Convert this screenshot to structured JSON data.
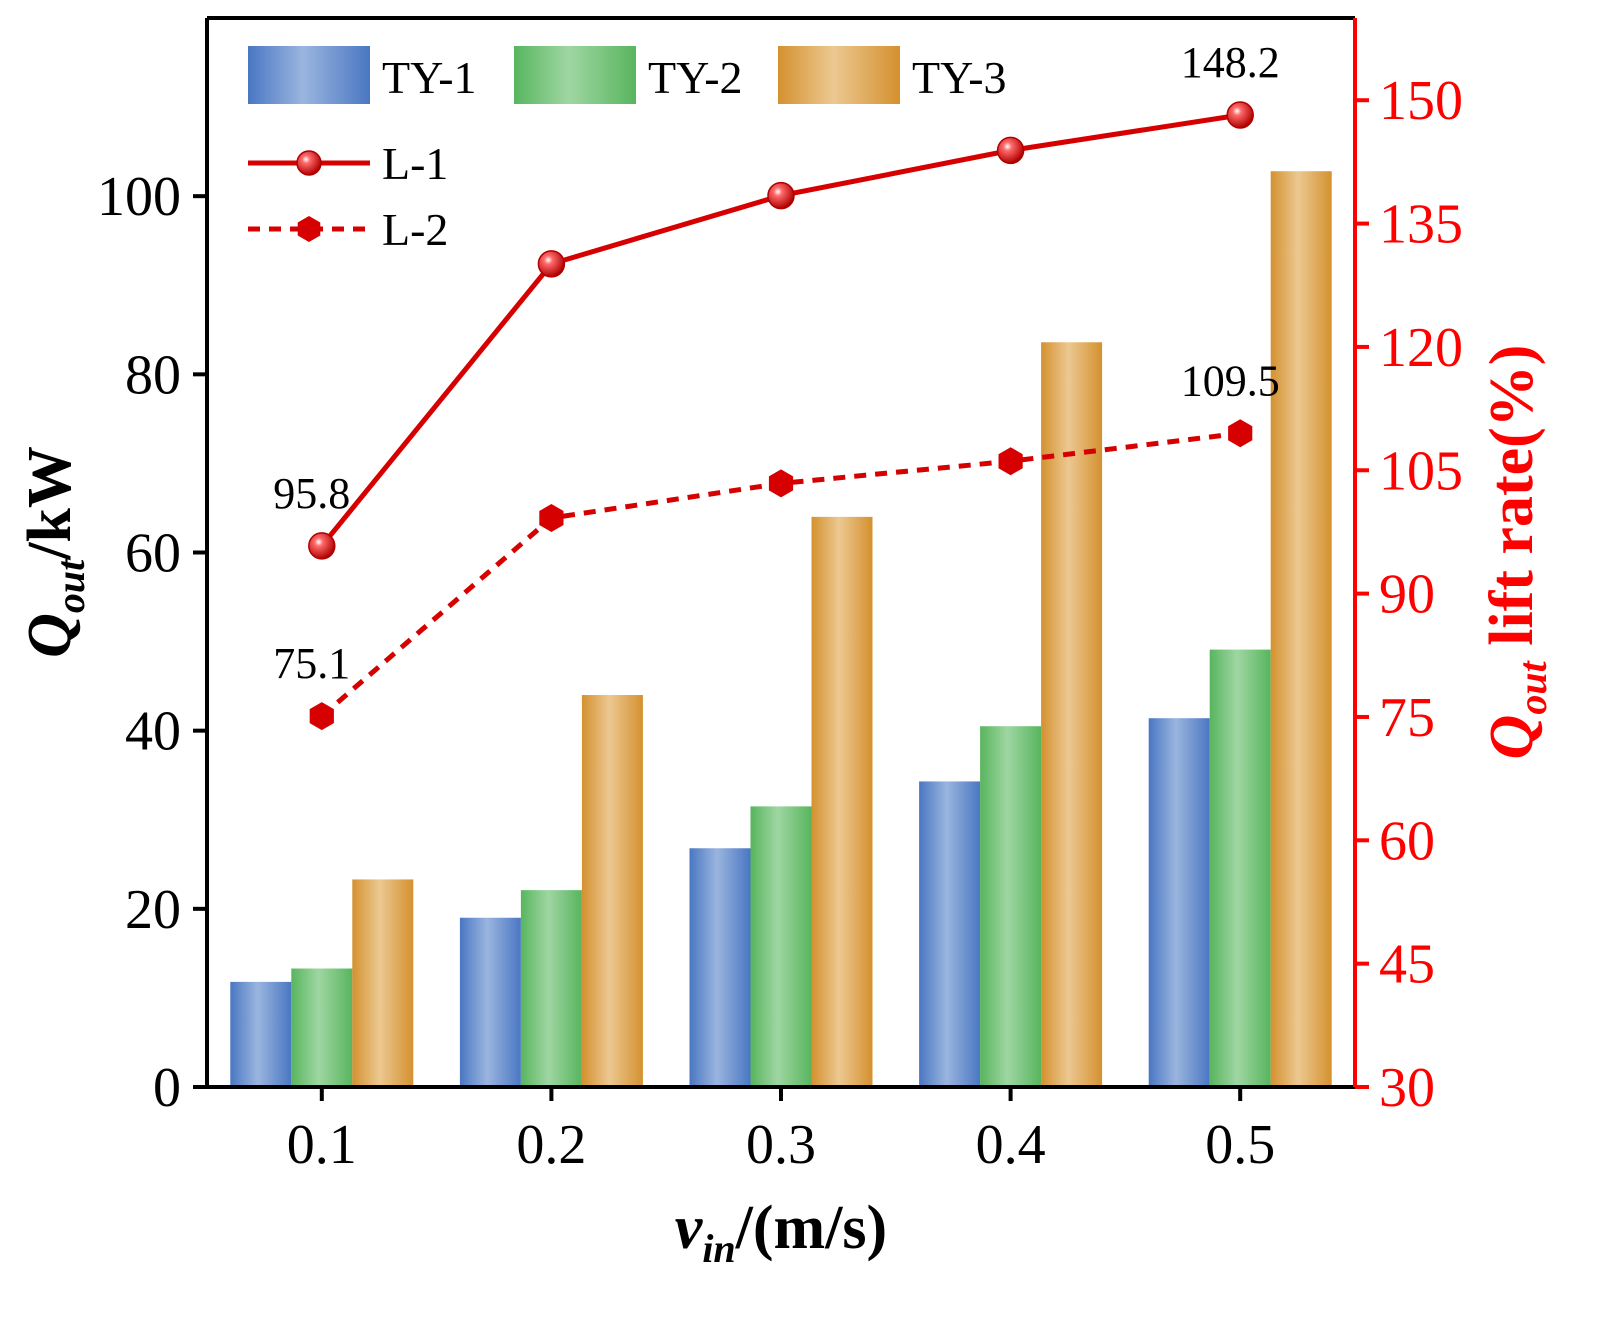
{
  "chart_data": {
    "type": "bar",
    "x": {
      "categories": [
        "0.1",
        "0.2",
        "0.3",
        "0.4",
        "0.5"
      ],
      "label_main": "v",
      "label_sub": "in",
      "label_rest": "/(m/s)"
    },
    "y_left": {
      "label_main": "Q",
      "label_sub": "out",
      "label_rest": "/kW",
      "ylim": [
        0,
        120
      ],
      "ticks": [
        0,
        20,
        40,
        60,
        80,
        100
      ]
    },
    "y_right": {
      "label_main": "Q",
      "label_sub": "out",
      "label_rest": " lift rate(%)",
      "ylim": [
        30,
        160
      ],
      "ticks": [
        30,
        45,
        60,
        75,
        90,
        105,
        120,
        135,
        150
      ],
      "color": "#ff0000"
    },
    "bar_series": [
      {
        "name": "TY-1",
        "values": [
          11.8,
          19.0,
          26.8,
          34.3,
          41.4
        ],
        "color_dark": "#4a77c3",
        "color_light": "#9ab5de"
      },
      {
        "name": "TY-2",
        "values": [
          13.3,
          22.1,
          31.5,
          40.5,
          49.1
        ],
        "color_dark": "#58b55e",
        "color_light": "#9fd6a2"
      },
      {
        "name": "TY-3",
        "values": [
          23.3,
          44.0,
          64.0,
          83.6,
          102.8
        ],
        "color_dark": "#d4912f",
        "color_light": "#ecc891"
      }
    ],
    "line_series": [
      {
        "name": "L-1",
        "axis": "right",
        "values": [
          95.8,
          130.1,
          138.4,
          143.9,
          148.2
        ],
        "style": "solid",
        "marker": "sphere",
        "color": "#d60000"
      },
      {
        "name": "L-2",
        "axis": "right",
        "values": [
          75.1,
          99.2,
          103.4,
          106.1,
          109.5
        ],
        "style": "dashed",
        "marker": "hexagon",
        "color": "#d60000"
      }
    ],
    "annotations": [
      {
        "text": "95.8",
        "series": 0,
        "index": 0
      },
      {
        "text": "148.2",
        "series": 0,
        "index": 4
      },
      {
        "text": "75.1",
        "series": 1,
        "index": 0
      },
      {
        "text": "109.5",
        "series": 1,
        "index": 4
      }
    ],
    "legend": {
      "placement": "top-left"
    },
    "grid": false
  }
}
